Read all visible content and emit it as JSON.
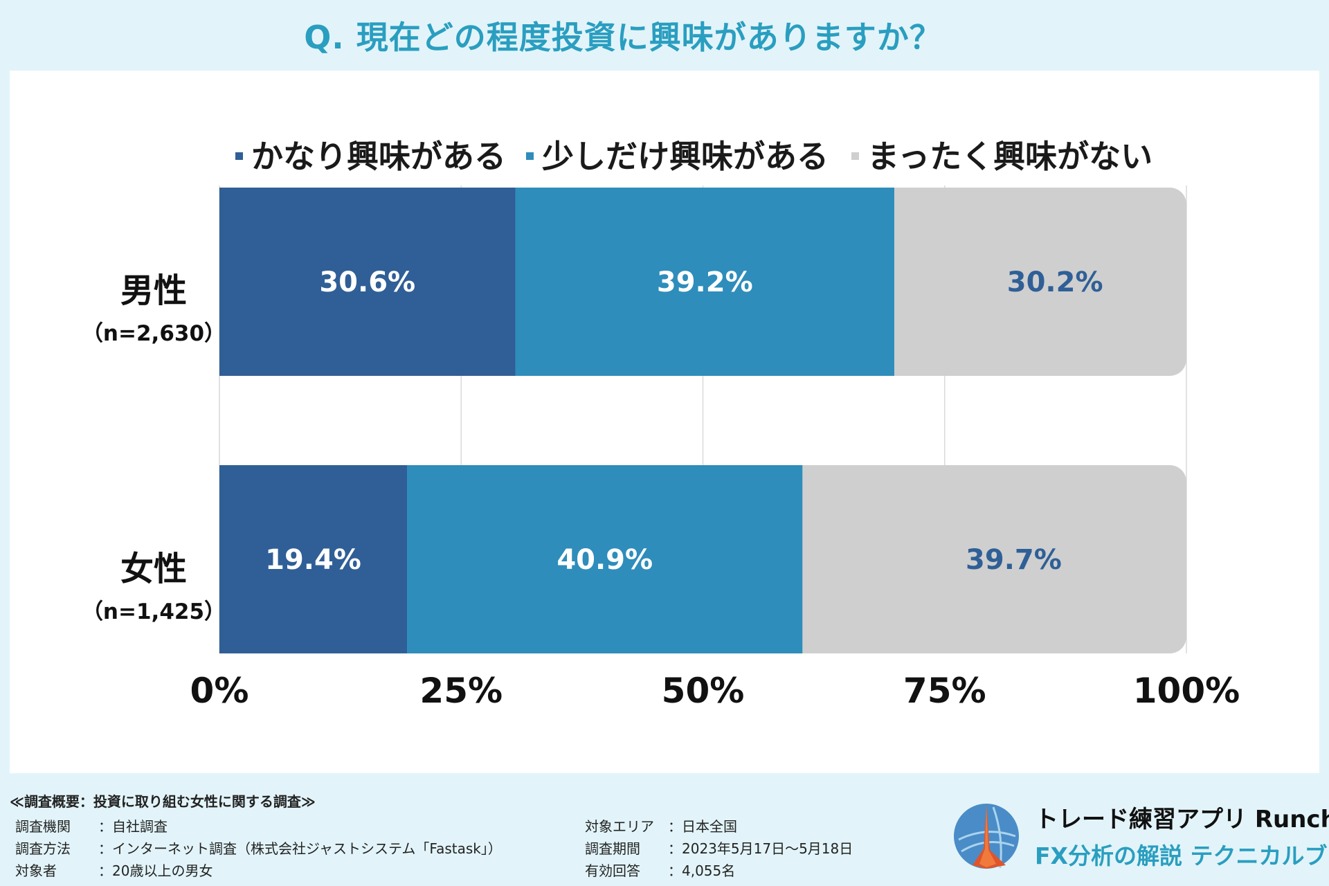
{
  "title": "Q. 現在どの程度投資に興味がありますか？",
  "colors": {
    "series1": "#2f5f96",
    "series2": "#2e8dbb",
    "series3": "#cfcfcf",
    "accent": "#2a9ec0"
  },
  "legend": [
    "かなり興味がある",
    "少しだけ興味がある",
    "まったく興味がない"
  ],
  "rows": [
    {
      "name": "男性",
      "n": "（n=2,630）"
    },
    {
      "name": "女性",
      "n": "（n=1,425）"
    }
  ],
  "chart_data": {
    "type": "bar",
    "orientation": "horizontal",
    "stacked": true,
    "title": "Q. 現在どの程度投資に興味がありますか？",
    "categories": [
      "男性（n=2,630）",
      "女性（n=1,425）"
    ],
    "series": [
      {
        "name": "かなり興味がある",
        "values": [
          30.6,
          19.4
        ],
        "labels": [
          "30.6%",
          "19.4%"
        ]
      },
      {
        "name": "少しだけ興味がある",
        "values": [
          39.2,
          40.9
        ],
        "labels": [
          "39.2%",
          "40.9%"
        ]
      },
      {
        "name": "まったく興味がない",
        "values": [
          30.2,
          39.7
        ],
        "labels": [
          "30.2%",
          "39.7%"
        ]
      }
    ],
    "xlim": [
      0,
      100
    ],
    "xticks": [
      "0%",
      "25%",
      "50%",
      "75%",
      "100%"
    ],
    "grid": true,
    "legend_position": "top"
  },
  "footer": {
    "header": "≪調査概要：投資に取り組む女性に関する調査≫",
    "left": [
      {
        "key": "調査機関",
        "value": "：自社調査"
      },
      {
        "key": "調査方法",
        "value": "：インターネット調査（株式会社ジャストシステム「Fastask」）"
      },
      {
        "key": "対象者",
        "value": "：20歳以上の男女"
      }
    ],
    "right": [
      {
        "key": "対象エリア",
        "value": "：日本全国"
      },
      {
        "key": "調査期間",
        "value": "：2023年5月17日〜5月18日"
      },
      {
        "key": "有効回答",
        "value": "：4,055名"
      }
    ]
  },
  "brand": {
    "name": "トレード練習アプリ Runcha",
    "subtitle": "FX分析の解説 テクニカルブック"
  }
}
